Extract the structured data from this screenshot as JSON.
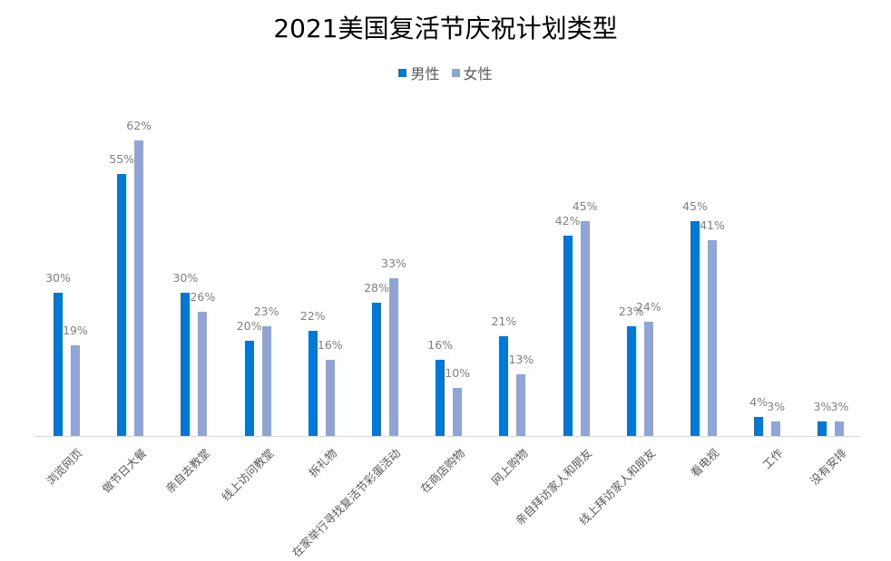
{
  "chart_data": {
    "type": "bar",
    "title": "2021美国复活节庆祝计划类型",
    "xlabel": "",
    "ylabel": "",
    "ylim": [
      0,
      65
    ],
    "grid": false,
    "legend_position": "top",
    "categories": [
      "浏览网页",
      "做节日大餐",
      "亲自去教堂",
      "线上访问教堂",
      "拆礼物",
      "在家举行寻找复活节彩蛋活动",
      "在商店购物",
      "网上购物",
      "亲自拜访家人和朋友",
      "线上拜访家人和朋友",
      "看电视",
      "工作",
      "没有安排"
    ],
    "series": [
      {
        "name": "男性",
        "color": "#0078d7",
        "values": [
          30,
          55,
          30,
          20,
          22,
          28,
          16,
          21,
          42,
          23,
          45,
          4,
          3
        ]
      },
      {
        "name": "女性",
        "color": "#8fa5d6",
        "values": [
          19,
          62,
          26,
          23,
          16,
          33,
          10,
          13,
          45,
          24,
          41,
          3,
          3
        ]
      }
    ],
    "value_format": "%"
  },
  "legend": {
    "items": [
      {
        "label": "男性",
        "color": "#0078d7"
      },
      {
        "label": "女性",
        "color": "#8fa5d6"
      }
    ]
  }
}
